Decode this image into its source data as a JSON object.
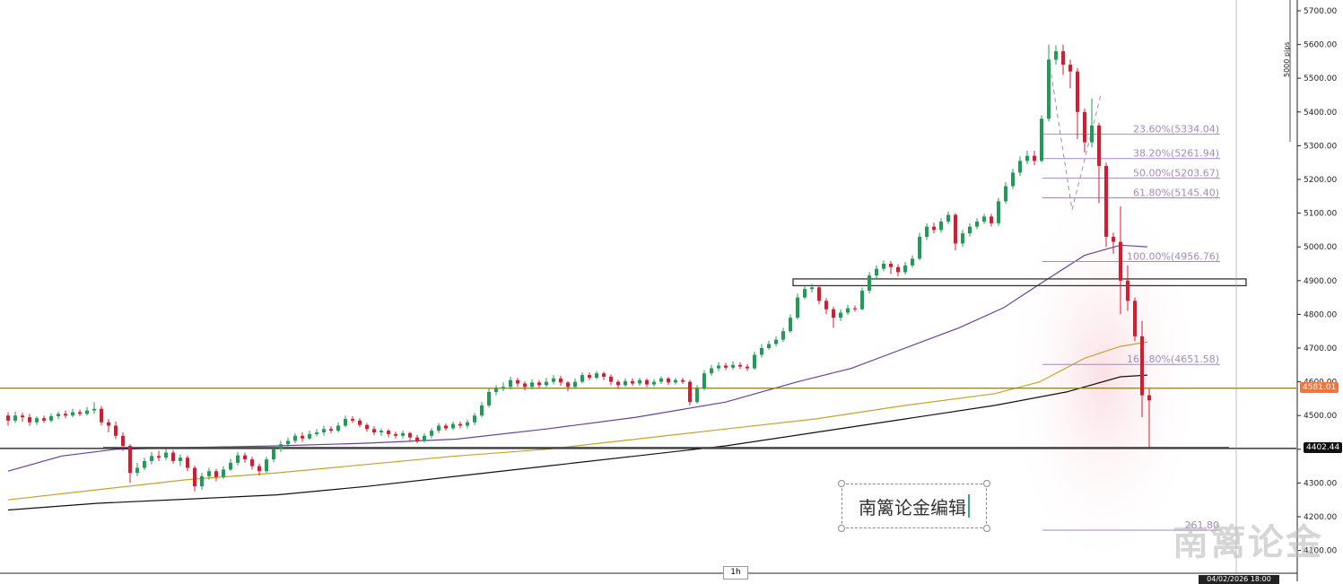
{
  "chart_data": {
    "type": "candlestick",
    "timeframe": "1h",
    "ylim": [
      4100,
      5750
    ],
    "y_ticks": [
      "5700.00",
      "5600.00",
      "5500.00",
      "5400.00",
      "5300.00",
      "5200.00",
      "5100.00",
      "5000.00",
      "4900.00",
      "4800.00",
      "4700.00",
      "4600.00",
      "4500.00",
      "4400.00",
      "4300.00",
      "4200.00",
      "4100.00"
    ],
    "pips_label": "5000 pips",
    "current_price_label": "4581.01",
    "support_price_label": "4402.44",
    "cursor_date_label": "04/02/2026 18:00",
    "fib_levels": [
      {
        "label": "23.60%(5334.04)",
        "value": 5334.04
      },
      {
        "label": "38.20%(5261.94)",
        "value": 5261.94
      },
      {
        "label": "50.00%(5203.67)",
        "value": 5203.67
      },
      {
        "label": "61.80%(5145.40)",
        "value": 5145.4
      },
      {
        "label": "100.00%(4956.76)",
        "value": 4956.76
      },
      {
        "label": "161.80%(4651.58)",
        "value": 4651.58
      },
      {
        "label": "261.80",
        "value": 4160
      }
    ],
    "horizontal_lines": [
      {
        "name": "resistance-4581",
        "value": 4581.01,
        "color": "#8b7a1e"
      },
      {
        "name": "support-4402",
        "value": 4402.44,
        "color": "#111111"
      }
    ],
    "zone": {
      "from": 4885,
      "to": 4905
    },
    "moving_averages": [
      {
        "color": "#6a3fa0",
        "points": [
          [
            0,
            4335
          ],
          [
            60,
            4380
          ],
          [
            120,
            4400
          ],
          [
            200,
            4405
          ],
          [
            300,
            4410
          ],
          [
            400,
            4418
          ],
          [
            500,
            4430
          ],
          [
            600,
            4460
          ],
          [
            700,
            4495
          ],
          [
            800,
            4540
          ],
          [
            880,
            4600
          ],
          [
            940,
            4640
          ],
          [
            1000,
            4700
          ],
          [
            1060,
            4760
          ],
          [
            1110,
            4820
          ],
          [
            1150,
            4890
          ],
          [
            1200,
            4975
          ],
          [
            1240,
            5005
          ],
          [
            1270,
            5000
          ]
        ]
      },
      {
        "color": "#c9a227",
        "points": [
          [
            0,
            4250
          ],
          [
            100,
            4280
          ],
          [
            200,
            4310
          ],
          [
            300,
            4330
          ],
          [
            400,
            4355
          ],
          [
            500,
            4380
          ],
          [
            600,
            4400
          ],
          [
            700,
            4430
          ],
          [
            800,
            4460
          ],
          [
            900,
            4490
          ],
          [
            1000,
            4530
          ],
          [
            1100,
            4565
          ],
          [
            1150,
            4600
          ],
          [
            1200,
            4670
          ],
          [
            1240,
            4705
          ],
          [
            1270,
            4718
          ]
        ]
      },
      {
        "color": "#111111",
        "points": [
          [
            0,
            4220
          ],
          [
            100,
            4240
          ],
          [
            200,
            4252
          ],
          [
            300,
            4265
          ],
          [
            400,
            4290
          ],
          [
            500,
            4320
          ],
          [
            600,
            4350
          ],
          [
            700,
            4380
          ],
          [
            800,
            4410
          ],
          [
            900,
            4450
          ],
          [
            1000,
            4490
          ],
          [
            1100,
            4530
          ],
          [
            1180,
            4570
          ],
          [
            1240,
            4615
          ],
          [
            1270,
            4620
          ]
        ]
      }
    ],
    "candles": [
      [
        0,
        4500,
        4485,
        4510,
        4470
      ],
      [
        8,
        4485,
        4500,
        4512,
        4478
      ],
      [
        16,
        4500,
        4495,
        4508,
        4482
      ],
      [
        24,
        4495,
        4480,
        4505,
        4470
      ],
      [
        32,
        4480,
        4492,
        4498,
        4472
      ],
      [
        40,
        4492,
        4485,
        4500,
        4478
      ],
      [
        48,
        4485,
        4498,
        4506,
        4480
      ],
      [
        56,
        4498,
        4505,
        4512,
        4490
      ],
      [
        64,
        4505,
        4500,
        4515,
        4492
      ],
      [
        72,
        4500,
        4510,
        4520,
        4495
      ],
      [
        80,
        4510,
        4505,
        4518,
        4498
      ],
      [
        88,
        4505,
        4515,
        4525,
        4500
      ],
      [
        96,
        4515,
        4520,
        4540,
        4505
      ],
      [
        104,
        4520,
        4480,
        4528,
        4470
      ],
      [
        112,
        4480,
        4470,
        4490,
        4450
      ],
      [
        120,
        4470,
        4440,
        4482,
        4430
      ],
      [
        128,
        4440,
        4410,
        4450,
        4395
      ],
      [
        136,
        4410,
        4330,
        4415,
        4300
      ],
      [
        144,
        4330,
        4345,
        4360,
        4320
      ],
      [
        152,
        4345,
        4365,
        4375,
        4338
      ],
      [
        160,
        4365,
        4380,
        4392,
        4355
      ],
      [
        168,
        4380,
        4375,
        4395,
        4365
      ],
      [
        176,
        4375,
        4390,
        4400,
        4368
      ],
      [
        184,
        4390,
        4365,
        4398,
        4358
      ],
      [
        192,
        4365,
        4375,
        4385,
        4350
      ],
      [
        200,
        4375,
        4345,
        4382,
        4335
      ],
      [
        208,
        4345,
        4290,
        4352,
        4275
      ],
      [
        216,
        4290,
        4320,
        4330,
        4280
      ],
      [
        224,
        4320,
        4335,
        4345,
        4310
      ],
      [
        232,
        4335,
        4318,
        4342,
        4305
      ],
      [
        240,
        4318,
        4340,
        4350,
        4312
      ],
      [
        248,
        4340,
        4360,
        4372,
        4335
      ],
      [
        256,
        4360,
        4382,
        4392,
        4352
      ],
      [
        264,
        4382,
        4370,
        4390,
        4360
      ],
      [
        272,
        4370,
        4350,
        4378,
        4340
      ],
      [
        280,
        4350,
        4335,
        4358,
        4322
      ],
      [
        288,
        4335,
        4370,
        4378,
        4330
      ],
      [
        296,
        4370,
        4400,
        4410,
        4362
      ],
      [
        304,
        4400,
        4415,
        4425,
        4392
      ],
      [
        312,
        4415,
        4425,
        4435,
        4405
      ],
      [
        320,
        4425,
        4440,
        4448,
        4418
      ],
      [
        328,
        4440,
        4432,
        4450,
        4422
      ],
      [
        336,
        4432,
        4445,
        4455,
        4428
      ],
      [
        344,
        4445,
        4450,
        4460,
        4438
      ],
      [
        352,
        4450,
        4460,
        4470,
        4440
      ],
      [
        360,
        4460,
        4455,
        4468,
        4448
      ],
      [
        368,
        4455,
        4470,
        4480,
        4450
      ],
      [
        376,
        4470,
        4490,
        4500,
        4465
      ],
      [
        384,
        4490,
        4485,
        4498,
        4478
      ],
      [
        392,
        4485,
        4472,
        4492,
        4465
      ],
      [
        400,
        4472,
        4460,
        4478,
        4452
      ],
      [
        408,
        4460,
        4450,
        4468,
        4442
      ],
      [
        416,
        4450,
        4455,
        4462,
        4440
      ],
      [
        424,
        4455,
        4445,
        4460,
        4435
      ],
      [
        432,
        4445,
        4440,
        4452,
        4432
      ],
      [
        440,
        4440,
        4448,
        4456,
        4432
      ],
      [
        448,
        4448,
        4435,
        4452,
        4425
      ],
      [
        456,
        4435,
        4425,
        4442,
        4418
      ],
      [
        464,
        4425,
        4440,
        4448,
        4420
      ],
      [
        472,
        4440,
        4455,
        4462,
        4432
      ],
      [
        480,
        4455,
        4470,
        4478,
        4448
      ],
      [
        488,
        4470,
        4462,
        4476,
        4455
      ],
      [
        496,
        4462,
        4475,
        4482,
        4458
      ],
      [
        504,
        4475,
        4470,
        4482,
        4462
      ],
      [
        512,
        4470,
        4480,
        4488,
        4462
      ],
      [
        520,
        4480,
        4500,
        4508,
        4472
      ],
      [
        528,
        4500,
        4530,
        4540,
        4495
      ],
      [
        536,
        4530,
        4570,
        4580,
        4525
      ],
      [
        544,
        4570,
        4580,
        4590,
        4560
      ],
      [
        552,
        4580,
        4585,
        4598,
        4572
      ],
      [
        560,
        4585,
        4605,
        4615,
        4578
      ],
      [
        568,
        4605,
        4595,
        4612,
        4585
      ],
      [
        576,
        4595,
        4585,
        4602,
        4575
      ],
      [
        584,
        4585,
        4598,
        4608,
        4578
      ],
      [
        592,
        4598,
        4590,
        4605,
        4582
      ],
      [
        600,
        4590,
        4600,
        4612,
        4584
      ],
      [
        608,
        4600,
        4610,
        4620,
        4592
      ],
      [
        616,
        4610,
        4598,
        4618,
        4588
      ],
      [
        624,
        4598,
        4585,
        4602,
        4572
      ],
      [
        632,
        4585,
        4600,
        4610,
        4580
      ],
      [
        640,
        4600,
        4620,
        4628,
        4595
      ],
      [
        648,
        4620,
        4612,
        4628,
        4605
      ],
      [
        656,
        4612,
        4625,
        4632,
        4608
      ],
      [
        664,
        4625,
        4615,
        4630,
        4605
      ],
      [
        672,
        4615,
        4600,
        4622,
        4590
      ],
      [
        680,
        4600,
        4590,
        4606,
        4580
      ],
      [
        688,
        4590,
        4602,
        4610,
        4585
      ],
      [
        696,
        4602,
        4595,
        4610,
        4588
      ],
      [
        704,
        4595,
        4605,
        4612,
        4588
      ],
      [
        712,
        4605,
        4592,
        4610,
        4585
      ],
      [
        720,
        4592,
        4600,
        4608,
        4586
      ],
      [
        728,
        4600,
        4610,
        4616,
        4594
      ],
      [
        736,
        4610,
        4598,
        4614,
        4590
      ],
      [
        744,
        4598,
        4605,
        4612,
        4592
      ],
      [
        752,
        4605,
        4600,
        4612,
        4594
      ],
      [
        760,
        4600,
        4540,
        4606,
        4530
      ],
      [
        768,
        4540,
        4580,
        4590,
        4535
      ],
      [
        776,
        4580,
        4625,
        4635,
        4575
      ],
      [
        784,
        4625,
        4640,
        4650,
        4618
      ],
      [
        792,
        4640,
        4648,
        4658,
        4632
      ],
      [
        800,
        4648,
        4642,
        4656,
        4635
      ],
      [
        808,
        4642,
        4650,
        4660,
        4636
      ],
      [
        816,
        4650,
        4645,
        4658,
        4638
      ],
      [
        824,
        4645,
        4640,
        4652,
        4632
      ],
      [
        832,
        4640,
        4680,
        4690,
        4636
      ],
      [
        840,
        4680,
        4700,
        4712,
        4672
      ],
      [
        848,
        4700,
        4712,
        4722,
        4695
      ],
      [
        856,
        4712,
        4725,
        4735,
        4705
      ],
      [
        864,
        4725,
        4750,
        4760,
        4718
      ],
      [
        872,
        4750,
        4790,
        4800,
        4745
      ],
      [
        880,
        4790,
        4850,
        4862,
        4785
      ],
      [
        888,
        4850,
        4875,
        4885,
        4845
      ],
      [
        896,
        4875,
        4880,
        4890,
        4865
      ],
      [
        904,
        4880,
        4840,
        4885,
        4830
      ],
      [
        912,
        4840,
        4815,
        4848,
        4800
      ],
      [
        920,
        4815,
        4790,
        4822,
        4760
      ],
      [
        928,
        4790,
        4805,
        4815,
        4780
      ],
      [
        936,
        4805,
        4818,
        4828,
        4798
      ],
      [
        944,
        4818,
        4815,
        4826,
        4808
      ],
      [
        952,
        4815,
        4870,
        4880,
        4812
      ],
      [
        960,
        4870,
        4915,
        4925,
        4862
      ],
      [
        968,
        4915,
        4935,
        4945,
        4905
      ],
      [
        976,
        4935,
        4950,
        4960,
        4928
      ],
      [
        984,
        4950,
        4940,
        4958,
        4920
      ],
      [
        992,
        4940,
        4925,
        4948,
        4912
      ],
      [
        1000,
        4925,
        4945,
        4955,
        4918
      ],
      [
        1008,
        4945,
        4965,
        4975,
        4938
      ],
      [
        1016,
        4965,
        5030,
        5042,
        4960
      ],
      [
        1024,
        5030,
        5060,
        5070,
        5020
      ],
      [
        1032,
        5060,
        5050,
        5072,
        5040
      ],
      [
        1040,
        5050,
        5075,
        5085,
        5042
      ],
      [
        1048,
        5075,
        5095,
        5105,
        5068
      ],
      [
        1056,
        5095,
        5010,
        5100,
        4990
      ],
      [
        1064,
        5010,
        5040,
        5050,
        5000
      ],
      [
        1072,
        5040,
        5060,
        5070,
        5030
      ],
      [
        1080,
        5060,
        5075,
        5085,
        5052
      ],
      [
        1088,
        5075,
        5090,
        5098,
        5068
      ],
      [
        1096,
        5090,
        5070,
        5098,
        5060
      ],
      [
        1104,
        5070,
        5135,
        5145,
        5062
      ],
      [
        1112,
        5135,
        5180,
        5192,
        5128
      ],
      [
        1120,
        5180,
        5220,
        5232,
        5172
      ],
      [
        1128,
        5220,
        5255,
        5268,
        5210
      ],
      [
        1136,
        5255,
        5270,
        5285,
        5245
      ],
      [
        1144,
        5270,
        5255,
        5285,
        5242
      ],
      [
        1152,
        5255,
        5380,
        5390,
        5250
      ],
      [
        1160,
        5380,
        5555,
        5600,
        5372
      ],
      [
        1168,
        5555,
        5580,
        5598,
        5540
      ],
      [
        1176,
        5580,
        5540,
        5600,
        5510
      ],
      [
        1184,
        5540,
        5520,
        5555,
        5470
      ],
      [
        1192,
        5520,
        5400,
        5530,
        5320
      ],
      [
        1200,
        5400,
        5310,
        5410,
        5280
      ],
      [
        1208,
        5310,
        5360,
        5440,
        5295
      ],
      [
        1216,
        5360,
        5240,
        5368,
        5130
      ],
      [
        1224,
        5240,
        5030,
        5250,
        5000
      ],
      [
        1232,
        5030,
        5015,
        5042,
        4980
      ],
      [
        1240,
        5015,
        4900,
        5120,
        4800
      ],
      [
        1248,
        4900,
        4840,
        4945,
        4810
      ],
      [
        1256,
        4840,
        4735,
        4850,
        4720
      ],
      [
        1264,
        4735,
        4560,
        4780,
        4495
      ],
      [
        1272,
        4560,
        4545,
        4580,
        4405
      ]
    ]
  },
  "note_text": "南篱论金编辑",
  "watermark_text": "南篱论金",
  "timeframe_label": "1h",
  "colors": {
    "up": "#1f9d55",
    "down": "#e0182d",
    "fib": "#a488c4",
    "current_price_bg": "#f4743b",
    "support_bg": "#111111"
  }
}
